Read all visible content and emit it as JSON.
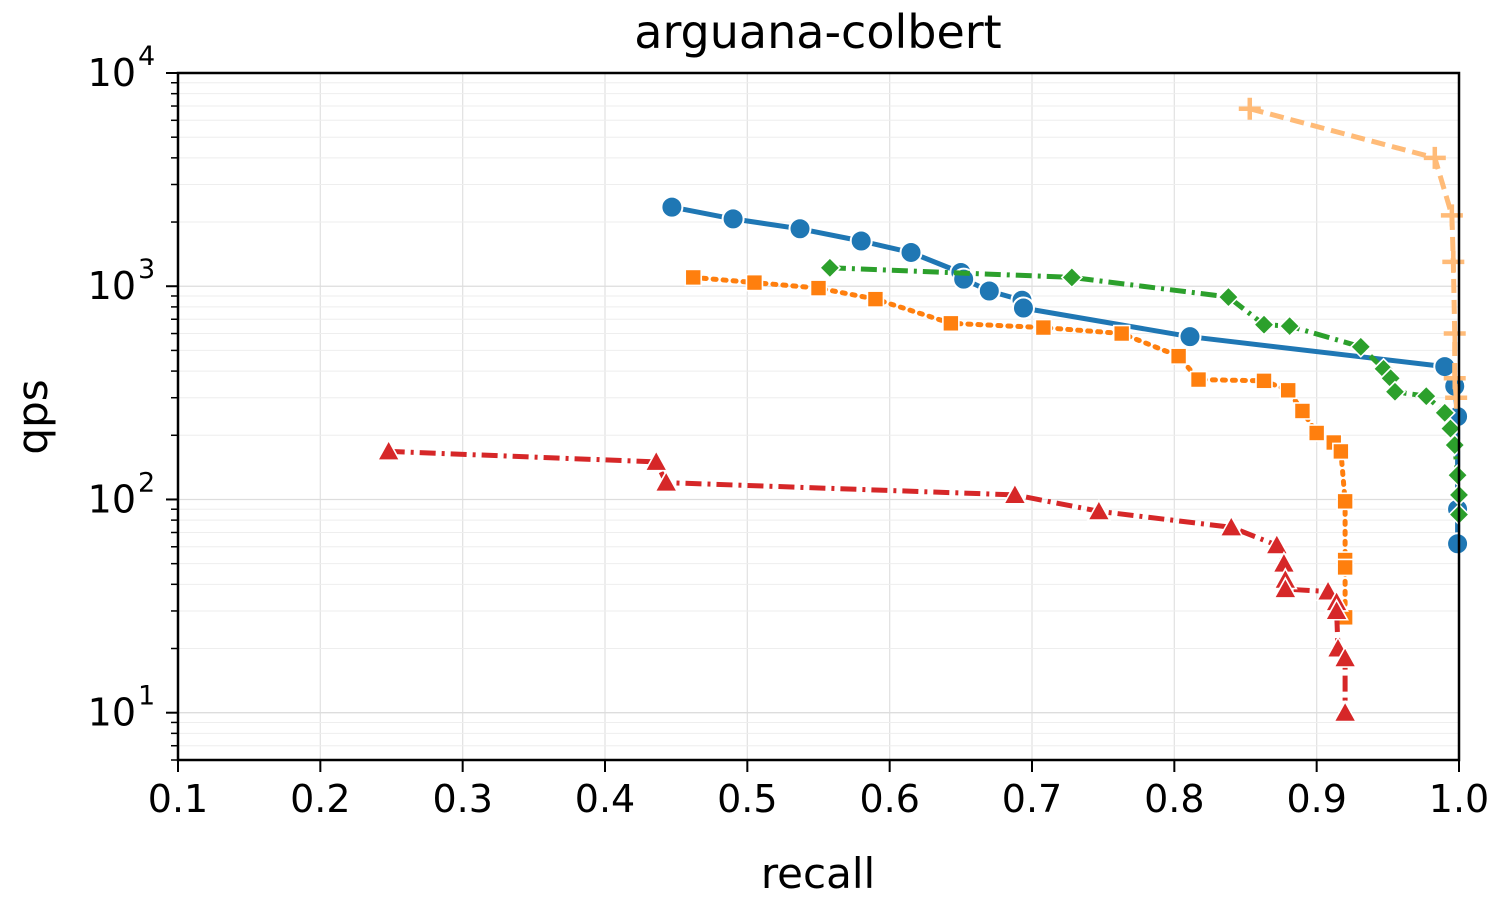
{
  "chart_data": {
    "type": "line",
    "title": "arguana-colbert",
    "xlabel": "recall",
    "ylabel": "qps",
    "xlim": [
      0.1,
      1.0
    ],
    "ylim": [
      6,
      10000
    ],
    "yscale": "log",
    "grid": true,
    "legend": "none",
    "x_ticks": [
      "0.1",
      "0.2",
      "0.3",
      "0.4",
      "0.5",
      "0.6",
      "0.7",
      "0.8",
      "0.9",
      "1.0"
    ],
    "y_ticks": [
      {
        "base": "10",
        "exp": "1"
      },
      {
        "base": "10",
        "exp": "2"
      },
      {
        "base": "10",
        "exp": "3"
      },
      {
        "base": "10",
        "exp": "4"
      }
    ],
    "series": [
      {
        "color": "#1f77b4",
        "marker": "circle",
        "line_style": "solid",
        "x": [
          0.447,
          0.49,
          0.537,
          0.58,
          0.615,
          0.65,
          0.652,
          0.67,
          0.693,
          0.694,
          0.811,
          0.99,
          0.997,
          0.999,
          0.999,
          0.999
        ],
        "y": [
          2350,
          2070,
          1860,
          1630,
          1440,
          1160,
          1080,
          950,
          860,
          790,
          580,
          420,
          340,
          245,
          90,
          62
        ]
      },
      {
        "color": "#ff7f0e",
        "marker": "square",
        "line_style": "dotted",
        "x": [
          0.462,
          0.505,
          0.55,
          0.59,
          0.643,
          0.708,
          0.763,
          0.803,
          0.817,
          0.863,
          0.88,
          0.89,
          0.9,
          0.912,
          0.917,
          0.92,
          0.92,
          0.92,
          0.92
        ],
        "y": [
          1100,
          1040,
          980,
          870,
          670,
          640,
          600,
          470,
          365,
          360,
          325,
          260,
          205,
          185,
          168,
          98,
          52,
          48,
          28
        ]
      },
      {
        "color": "#2ca02c",
        "marker": "diamond",
        "line_style": "dashdot",
        "x": [
          0.558,
          0.728,
          0.838,
          0.863,
          0.881,
          0.931,
          0.947,
          0.952,
          0.955,
          0.977,
          0.99,
          0.994,
          0.997,
          0.999,
          1.0,
          1.0
        ],
        "y": [
          1220,
          1100,
          890,
          660,
          650,
          520,
          410,
          370,
          320,
          305,
          255,
          215,
          180,
          130,
          105,
          85
        ]
      },
      {
        "color": "#d62728",
        "marker": "triangle",
        "line_style": "dashdot",
        "x": [
          0.248,
          0.436,
          0.443,
          0.688,
          0.747,
          0.84,
          0.872,
          0.877,
          0.878,
          0.878,
          0.908,
          0.914,
          0.914,
          0.915,
          0.92,
          0.92
        ],
        "y": [
          168,
          150,
          120,
          105,
          88,
          74,
          61,
          50,
          42,
          38,
          37,
          33,
          30,
          20,
          18,
          10
        ]
      },
      {
        "color": "#ffbb78",
        "marker": "plus",
        "line_style": "dashed",
        "x": [
          0.853,
          0.983,
          0.995,
          0.996,
          0.997,
          0.997,
          0.998
        ],
        "y": [
          6800,
          4000,
          2150,
          1300,
          600,
          370,
          300
        ]
      }
    ]
  }
}
